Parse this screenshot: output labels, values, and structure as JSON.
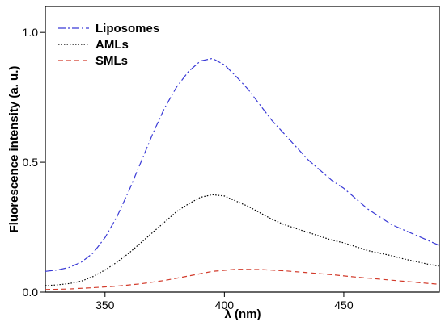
{
  "chart_data": {
    "type": "line",
    "xlabel": "λ (nm)",
    "ylabel": "Fluorescence intensity (a. u.)",
    "xlim": [
      325,
      490
    ],
    "ylim": [
      0,
      1.1
    ],
    "x_ticks": [
      350,
      400,
      450
    ],
    "y_ticks": [
      0.0,
      0.5,
      1.0
    ],
    "x_tick_labels": [
      "350",
      "400",
      "450"
    ],
    "y_tick_labels": [
      "0.0",
      "0.5",
      "1.0"
    ],
    "legend_position": "top-left",
    "grid": false,
    "series": [
      {
        "name": "Liposomes",
        "color": "#3a3ad6",
        "dash": "dashdot",
        "x": [
          325,
          330,
          335,
          340,
          345,
          350,
          355,
          360,
          365,
          370,
          375,
          380,
          385,
          390,
          395,
          400,
          405,
          410,
          415,
          420,
          425,
          430,
          435,
          440,
          445,
          450,
          455,
          460,
          465,
          470,
          475,
          480,
          485,
          490
        ],
        "y": [
          0.08,
          0.085,
          0.095,
          0.115,
          0.15,
          0.21,
          0.29,
          0.39,
          0.5,
          0.61,
          0.71,
          0.79,
          0.85,
          0.89,
          0.9,
          0.875,
          0.83,
          0.78,
          0.72,
          0.66,
          0.61,
          0.56,
          0.51,
          0.47,
          0.43,
          0.4,
          0.36,
          0.32,
          0.29,
          0.26,
          0.24,
          0.22,
          0.2,
          0.18
        ]
      },
      {
        "name": "AMLs",
        "color": "#000000",
        "dash": "dotted",
        "x": [
          325,
          330,
          335,
          340,
          345,
          350,
          355,
          360,
          365,
          370,
          375,
          380,
          385,
          390,
          395,
          400,
          405,
          410,
          415,
          420,
          425,
          430,
          435,
          440,
          445,
          450,
          455,
          460,
          465,
          470,
          475,
          480,
          485,
          490
        ],
        "y": [
          0.025,
          0.028,
          0.033,
          0.042,
          0.06,
          0.085,
          0.115,
          0.15,
          0.19,
          0.23,
          0.27,
          0.31,
          0.34,
          0.365,
          0.375,
          0.37,
          0.35,
          0.33,
          0.305,
          0.28,
          0.26,
          0.245,
          0.23,
          0.215,
          0.2,
          0.19,
          0.175,
          0.16,
          0.15,
          0.14,
          0.128,
          0.118,
          0.108,
          0.1
        ]
      },
      {
        "name": "SMLs",
        "color": "#d23a2a",
        "dash": "dashed",
        "x": [
          325,
          335,
          345,
          355,
          365,
          375,
          385,
          395,
          405,
          415,
          425,
          435,
          445,
          455,
          465,
          475,
          485,
          490
        ],
        "y": [
          0.01,
          0.012,
          0.017,
          0.023,
          0.032,
          0.045,
          0.062,
          0.08,
          0.088,
          0.087,
          0.082,
          0.075,
          0.067,
          0.058,
          0.05,
          0.042,
          0.034,
          0.03
        ]
      }
    ]
  }
}
